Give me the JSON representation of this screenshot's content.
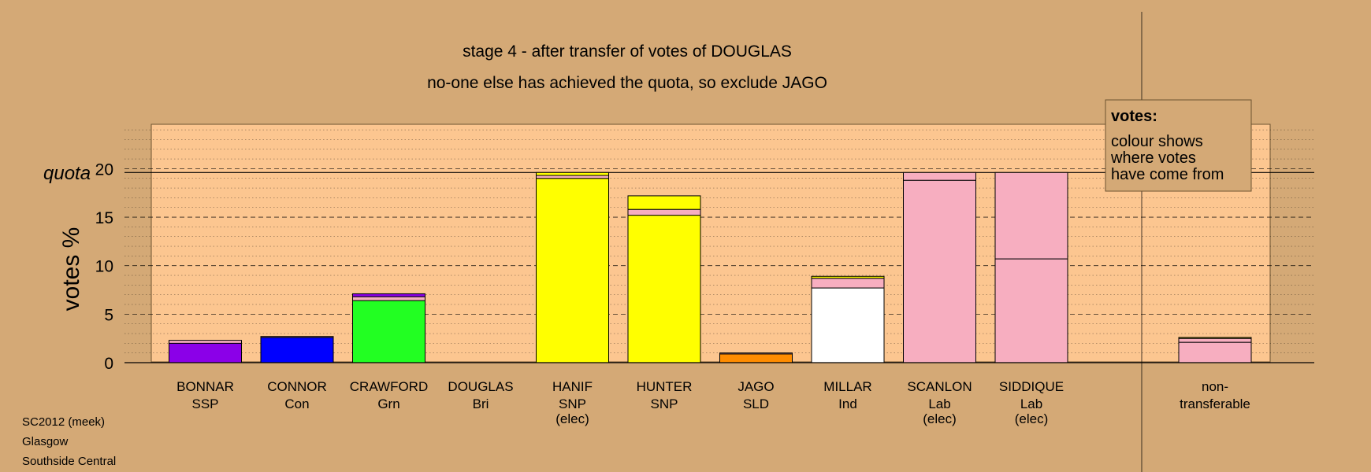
{
  "chart_data": {
    "type": "bar",
    "title": "stage 4 - after transfer of votes of DOUGLAS",
    "subtitle": "no-one else has achieved the quota, so exclude JAGO",
    "ylabel": "votes %",
    "ylim": [
      0,
      25
    ],
    "yticks": [
      0,
      5,
      10,
      15,
      20
    ],
    "quota": 19.6,
    "quota_label": "quota",
    "grid": true,
    "legend": {
      "title": "votes:",
      "lines": [
        "colour shows",
        "where votes",
        "have come from"
      ],
      "position": "top-right"
    },
    "categories": [
      {
        "name": "BONNAR",
        "party": "SSP",
        "note": "",
        "segments": [
          {
            "value": 2.0,
            "color": "#8b00e8"
          },
          {
            "value": 0.3,
            "color": "#f7aec0"
          }
        ]
      },
      {
        "name": "CONNOR",
        "party": "Con",
        "note": "",
        "segments": [
          {
            "value": 2.6,
            "color": "#0000ff"
          },
          {
            "value": 0.1,
            "color": "#f7aec0"
          }
        ]
      },
      {
        "name": "CRAWFORD",
        "party": "Grn",
        "note": "",
        "segments": [
          {
            "value": 6.4,
            "color": "#22ff22"
          },
          {
            "value": 0.4,
            "color": "#f7aec0"
          },
          {
            "value": 0.3,
            "color": "#8b00e8"
          }
        ]
      },
      {
        "name": "DOUGLAS",
        "party": "Bri",
        "note": "",
        "segments": []
      },
      {
        "name": "HANIF",
        "party": "SNP",
        "note": "(elec)",
        "segments": [
          {
            "value": 19.0,
            "color": "#ffff00"
          },
          {
            "value": 0.3,
            "color": "#f7aec0"
          },
          {
            "value": 0.3,
            "color": "#ffff00"
          }
        ]
      },
      {
        "name": "HUNTER",
        "party": "SNP",
        "note": "",
        "segments": [
          {
            "value": 15.2,
            "color": "#ffff00"
          },
          {
            "value": 0.6,
            "color": "#f7aec0"
          },
          {
            "value": 1.4,
            "color": "#ffff00"
          }
        ]
      },
      {
        "name": "JAGO",
        "party": "SLD",
        "note": "",
        "segments": [
          {
            "value": 0.9,
            "color": "#ff8c00"
          },
          {
            "value": 0.1,
            "color": "#f7aec0"
          }
        ]
      },
      {
        "name": "MILLAR",
        "party": "Ind",
        "note": "",
        "segments": [
          {
            "value": 7.7,
            "color": "#ffffff"
          },
          {
            "value": 1.0,
            "color": "#f7aec0"
          },
          {
            "value": 0.2,
            "color": "#ffff00"
          }
        ]
      },
      {
        "name": "SCANLON",
        "party": "Lab",
        "note": "(elec)",
        "segments": [
          {
            "value": 18.8,
            "color": "#f7aec0"
          },
          {
            "value": 0.8,
            "color": "#f7aec0"
          }
        ]
      },
      {
        "name": "SIDDIQUE",
        "party": "Lab",
        "note": "(elec)",
        "segments": [
          {
            "value": 10.7,
            "color": "#f7aec0"
          },
          {
            "value": 8.9,
            "color": "#f7aec0"
          }
        ]
      },
      {
        "name": "non-",
        "party": "transferable",
        "note": "",
        "segments": [
          {
            "value": 2.1,
            "color": "#f7aec0"
          },
          {
            "value": 0.4,
            "color": "#f7aec0"
          },
          {
            "value": 0.1,
            "color": "#ffff00"
          }
        ]
      }
    ]
  },
  "footer": {
    "line1": "SC2012 (meek)",
    "line2": "Glasgow",
    "line3": "Southside Central"
  },
  "colors": {
    "background": "#d4a976",
    "plot_background": "#fcc690",
    "edge": "#000000"
  }
}
